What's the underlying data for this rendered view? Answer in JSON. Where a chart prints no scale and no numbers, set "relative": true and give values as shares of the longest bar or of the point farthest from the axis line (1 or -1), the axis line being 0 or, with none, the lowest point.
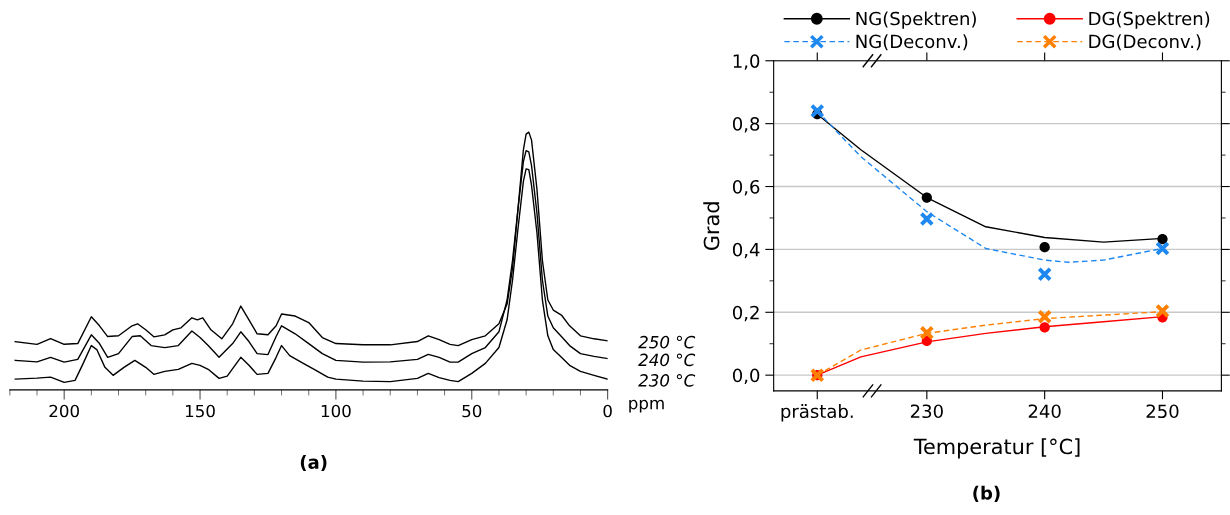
{
  "chart_data": [
    {
      "type": "line",
      "relative": true,
      "xlim": [
        220,
        0
      ],
      "xticks": [
        200,
        150,
        100,
        50,
        0
      ],
      "xlabel": "ppm",
      "annotations": [
        "(a)"
      ],
      "grid": false,
      "legend": false,
      "tick_labels": "x",
      "series": [
        {
          "name": "250 °C",
          "color": "#000000",
          "x": [
            218,
            210,
            205,
            200,
            195,
            190,
            187,
            184,
            180,
            175,
            173,
            170,
            167,
            163,
            160,
            157,
            153,
            151,
            149,
            146,
            142,
            138,
            135,
            132,
            129,
            125,
            122,
            120,
            115,
            110,
            105,
            100,
            90,
            80,
            70,
            66,
            62,
            58,
            55,
            50,
            45,
            40,
            37,
            35,
            33,
            31,
            30,
            29,
            28,
            26,
            24,
            22,
            20,
            17,
            14,
            10,
            5,
            0
          ],
          "values": [
            0.163,
            0.152,
            0.175,
            0.152,
            0.155,
            0.262,
            0.226,
            0.183,
            0.186,
            0.226,
            0.234,
            0.21,
            0.182,
            0.19,
            0.21,
            0.218,
            0.258,
            0.25,
            0.258,
            0.21,
            0.174,
            0.234,
            0.305,
            0.25,
            0.194,
            0.19,
            0.226,
            0.273,
            0.265,
            0.239,
            0.179,
            0.155,
            0.15,
            0.15,
            0.163,
            0.186,
            0.171,
            0.152,
            0.147,
            0.171,
            0.186,
            0.234,
            0.313,
            0.455,
            0.692,
            0.929,
            0.992,
            1.0,
            0.968,
            0.771,
            0.487,
            0.329,
            0.289,
            0.269,
            0.226,
            0.186,
            0.174,
            0.166
          ]
        },
        {
          "name": "240 °C",
          "color": "#000000",
          "x": [
            218,
            210,
            205,
            200,
            195,
            190,
            187,
            184,
            180,
            175,
            172,
            168,
            163,
            158,
            153,
            150,
            147,
            143,
            138,
            135,
            132,
            129,
            125,
            122,
            120,
            115,
            110,
            105,
            100,
            90,
            80,
            70,
            66,
            62,
            58,
            55,
            50,
            45,
            40,
            37,
            35,
            33,
            31,
            30,
            29,
            28,
            26,
            24,
            22,
            20,
            17,
            14,
            10,
            5,
            0
          ],
          "values": [
            0.088,
            0.082,
            0.1,
            0.081,
            0.092,
            0.19,
            0.155,
            0.1,
            0.115,
            0.183,
            0.186,
            0.147,
            0.139,
            0.147,
            0.205,
            0.179,
            0.147,
            0.1,
            0.155,
            0.202,
            0.163,
            0.115,
            0.111,
            0.183,
            0.226,
            0.194,
            0.155,
            0.115,
            0.088,
            0.081,
            0.082,
            0.092,
            0.112,
            0.1,
            0.081,
            0.081,
            0.115,
            0.139,
            0.202,
            0.329,
            0.487,
            0.692,
            0.882,
            0.926,
            0.921,
            0.866,
            0.676,
            0.408,
            0.265,
            0.218,
            0.183,
            0.147,
            0.115,
            0.104,
            0.095
          ]
        },
        {
          "name": "230 °C",
          "color": "#000000",
          "x": [
            218,
            210,
            205,
            200,
            196,
            193,
            190,
            188,
            185,
            182,
            178,
            174,
            170,
            167,
            163,
            158,
            153,
            150,
            147,
            143,
            140,
            135,
            132,
            129,
            125,
            122,
            120,
            117,
            112,
            108,
            103,
            100,
            90,
            80,
            70,
            66,
            62,
            58,
            55,
            50,
            45,
            40,
            37,
            35,
            33,
            31,
            30,
            29,
            28,
            26,
            24,
            22,
            20,
            17,
            14,
            10,
            5,
            0
          ],
          "values": [
            0.013,
            0.017,
            0.021,
            0.0,
            0.008,
            0.076,
            0.147,
            0.131,
            0.06,
            0.028,
            0.06,
            0.088,
            0.06,
            0.032,
            0.044,
            0.052,
            0.076,
            0.068,
            0.052,
            0.016,
            0.025,
            0.1,
            0.068,
            0.032,
            0.036,
            0.1,
            0.147,
            0.107,
            0.076,
            0.052,
            0.021,
            0.013,
            0.005,
            0.003,
            0.016,
            0.036,
            0.019,
            0.008,
            0.003,
            0.036,
            0.076,
            0.139,
            0.25,
            0.408,
            0.613,
            0.803,
            0.853,
            0.85,
            0.787,
            0.597,
            0.329,
            0.186,
            0.131,
            0.1,
            0.068,
            0.044,
            0.028,
            0.013
          ]
        }
      ]
    },
    {
      "type": "scatter",
      "xlim": [
        217,
        255
      ],
      "xticks": [
        {
          "value": 220.7,
          "label": "prästab."
        },
        230,
        240,
        250
      ],
      "ylim": [
        -0.05,
        1.0
      ],
      "yticks": [
        {
          "value": 0,
          "label": "0,0"
        },
        {
          "value": 0.2,
          "label": "0,2"
        },
        {
          "value": 0.4,
          "label": "0,4"
        },
        {
          "value": 0.6,
          "label": "0,6"
        },
        {
          "value": 0.8,
          "label": "0,8"
        },
        {
          "value": 1.0,
          "label": "1,0"
        }
      ],
      "xlabel": "Temperatur [°C]",
      "ylabel": "Grad",
      "annotations": [
        "(b)"
      ],
      "grid": "y",
      "legend": "top",
      "series": [
        {
          "name": "NG(Spektren)",
          "type": "scatter",
          "marker": "circle",
          "color": "#000000",
          "x": [
            220.7,
            230,
            240,
            250
          ],
          "values": [
            0.83,
            0.565,
            0.407,
            0.433
          ]
        },
        {
          "name": "NG(Deconv.)",
          "type": "scatter",
          "marker": "cross",
          "color": "#1e88f0",
          "x": [
            220.7,
            230,
            240,
            250
          ],
          "values": [
            0.84,
            0.497,
            0.321,
            0.403
          ]
        },
        {
          "name": "DG(Spektren)",
          "type": "scatter",
          "marker": "circle",
          "color": "#ff0000",
          "x": [
            220.7,
            230,
            240,
            250
          ],
          "values": [
            0.0,
            0.109,
            0.152,
            0.184
          ]
        },
        {
          "name": "DG(Deconv.)",
          "type": "scatter",
          "marker": "cross",
          "color": "#ff8000",
          "x": [
            220.7,
            230,
            240,
            250
          ],
          "values": [
            0.0,
            0.135,
            0.186,
            0.204
          ]
        },
        {
          "type": "line",
          "line_style": "solid",
          "color": "#000000",
          "x": [
            220.7,
            224.4,
            230,
            235,
            240,
            245,
            250
          ],
          "values": [
            0.83,
            0.717,
            0.565,
            0.472,
            0.438,
            0.423,
            0.435
          ]
        },
        {
          "type": "line",
          "line_style": "dashed",
          "color": "#1e88f0",
          "x": [
            220.7,
            224.4,
            230,
            235,
            240,
            242,
            245,
            250
          ],
          "values": [
            0.84,
            0.695,
            0.52,
            0.403,
            0.366,
            0.359,
            0.366,
            0.403
          ]
        },
        {
          "type": "line",
          "line_style": "solid",
          "color": "#ff0000",
          "x": [
            220.7,
            224.4,
            230,
            235,
            240,
            245,
            250
          ],
          "values": [
            0.0,
            0.058,
            0.106,
            0.133,
            0.154,
            0.17,
            0.186
          ]
        },
        {
          "type": "line",
          "line_style": "dashed",
          "color": "#ff8000",
          "x": [
            220.7,
            224.4,
            230,
            235,
            240,
            245,
            250
          ],
          "values": [
            0.0,
            0.08,
            0.133,
            0.159,
            0.18,
            0.191,
            0.202
          ]
        }
      ]
    }
  ]
}
